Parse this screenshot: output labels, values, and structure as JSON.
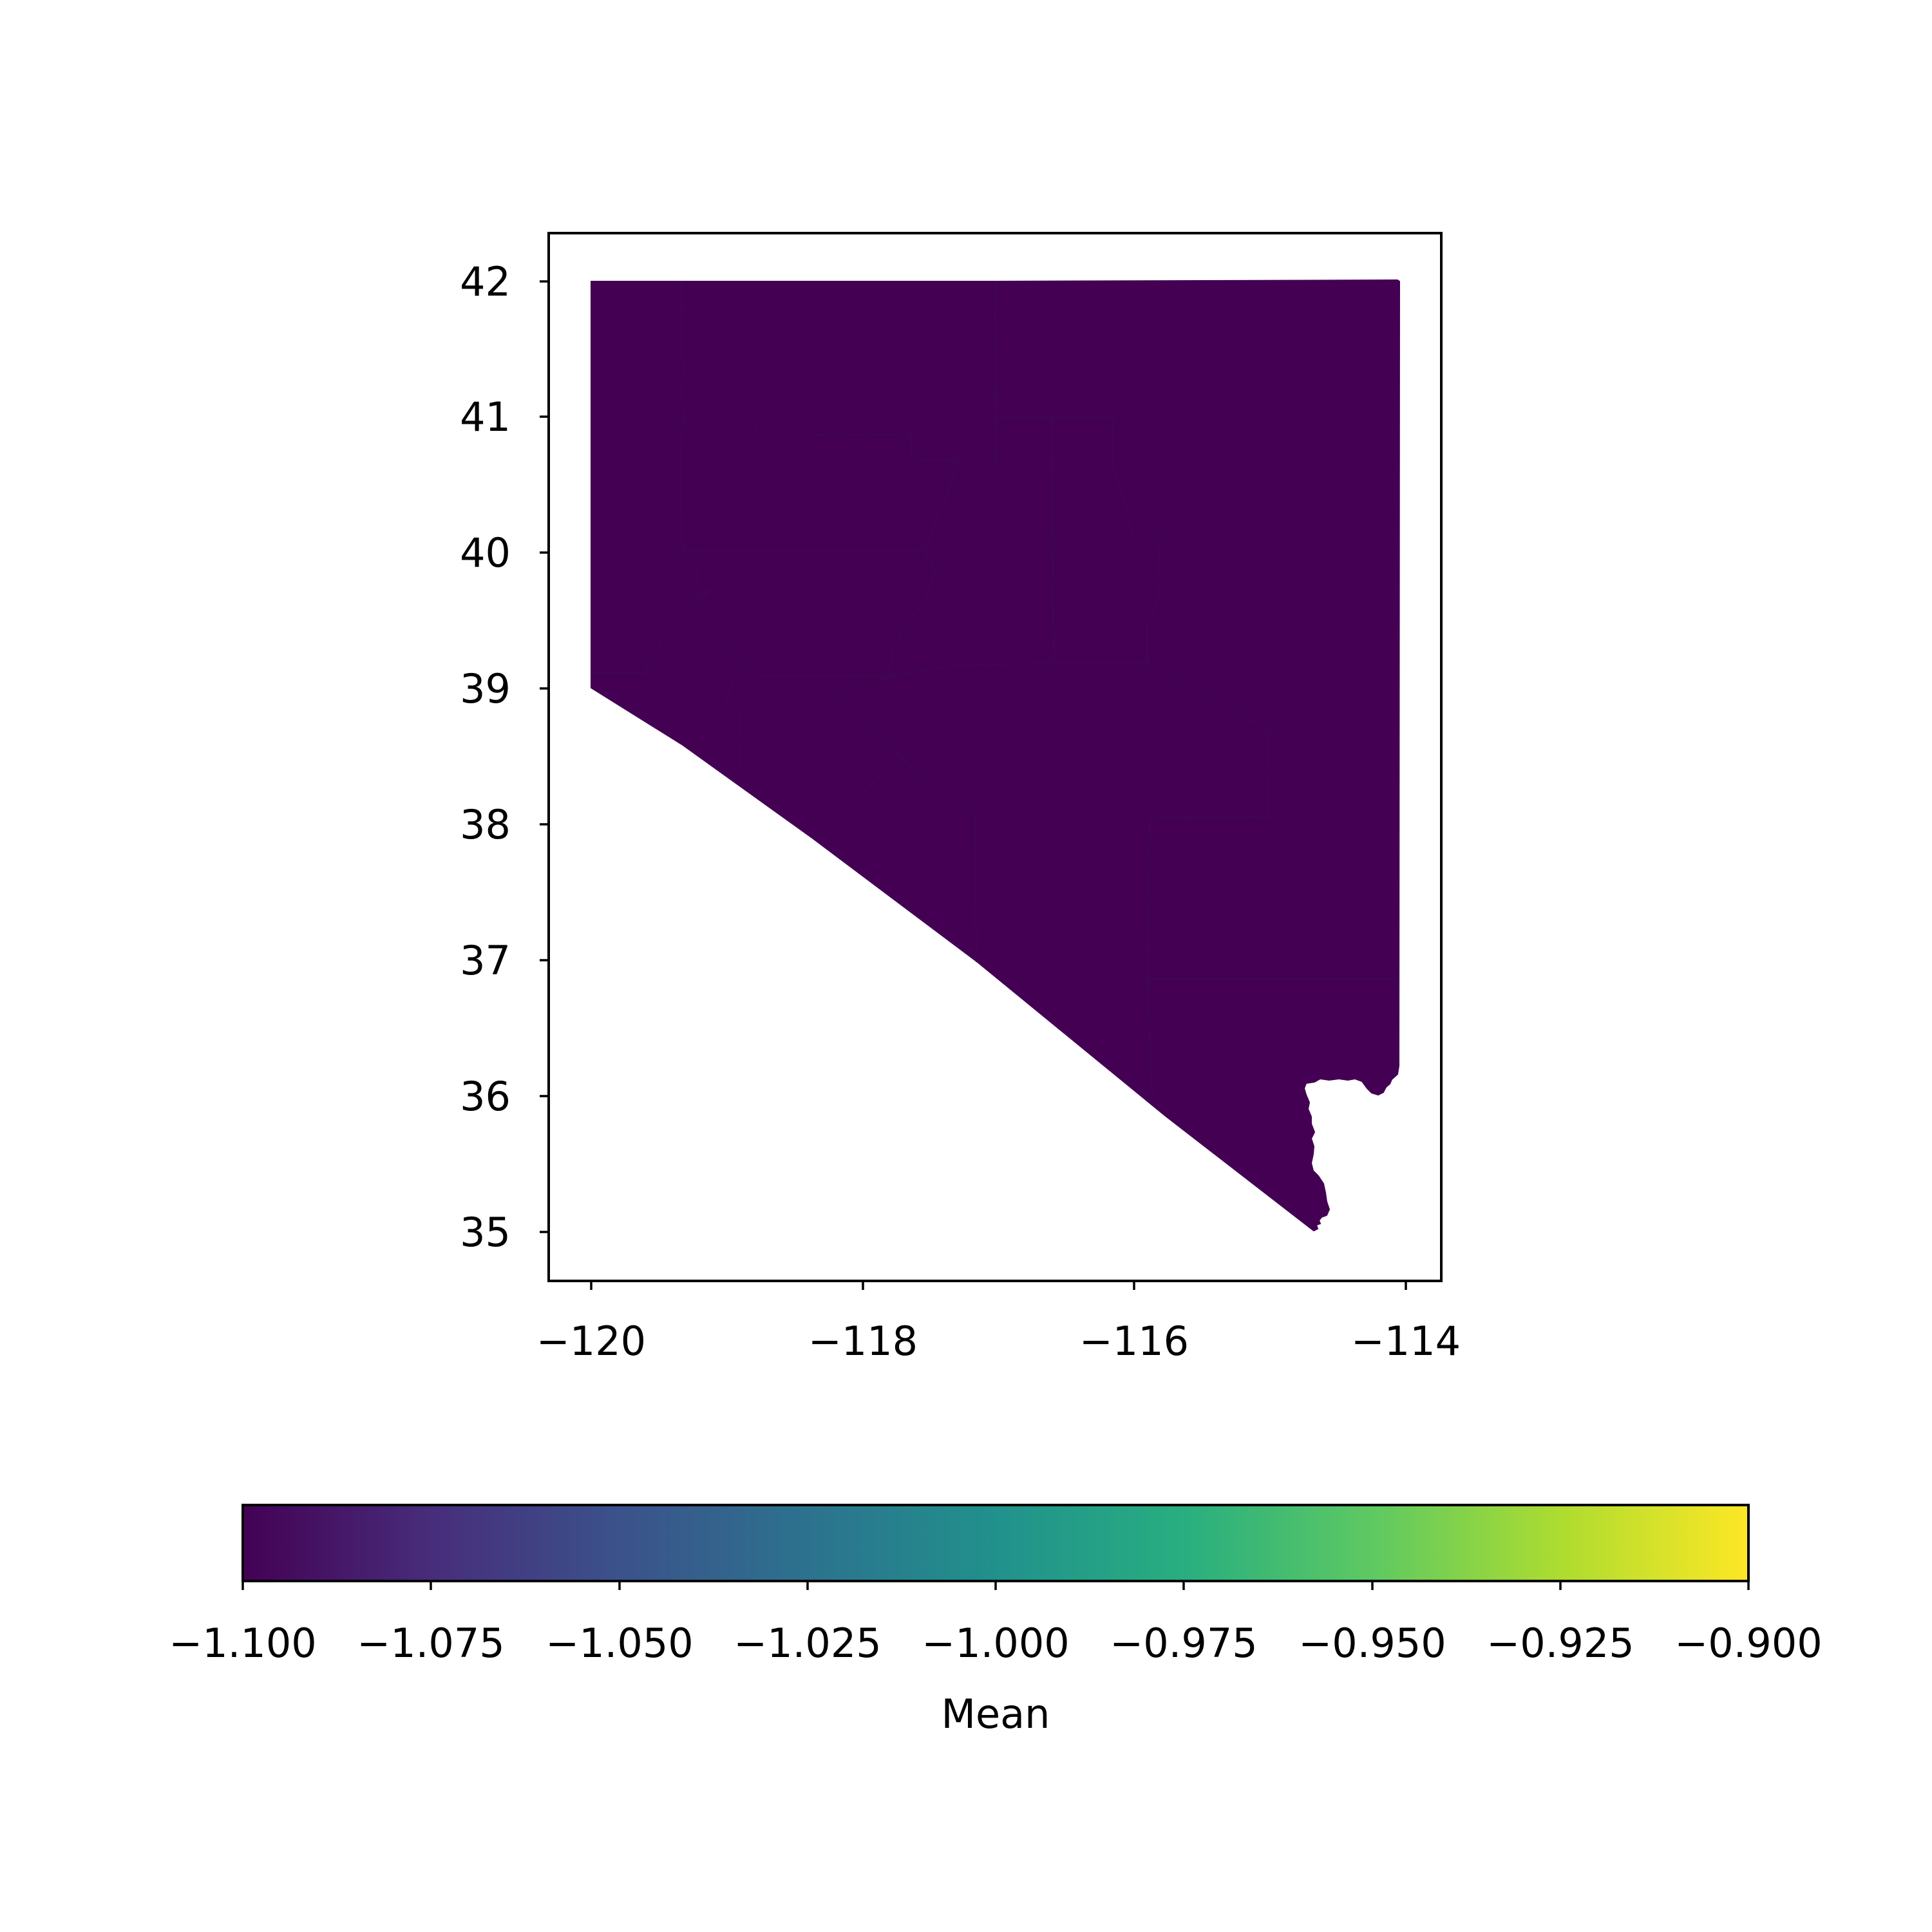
{
  "chart_data": {
    "type": "heatmap",
    "subtype": "choropleth",
    "region_value": -1.1,
    "x_ticks": [
      "−120",
      "−118",
      "−116",
      "−114"
    ],
    "x_tick_values": [
      -120,
      -118,
      -116,
      -114
    ],
    "y_ticks": [
      "35",
      "36",
      "37",
      "38",
      "39",
      "40",
      "41",
      "42"
    ],
    "y_tick_values": [
      35,
      36,
      37,
      38,
      39,
      40,
      41,
      42
    ],
    "colorbar": {
      "label": "Mean",
      "colormap": "viridis",
      "range": [
        -1.1,
        -0.9
      ],
      "tick_labels": [
        "−1.100",
        "−1.075",
        "−1.050",
        "−1.025",
        "−1.000",
        "−0.975",
        "−0.950",
        "−0.925",
        "−0.900"
      ],
      "orientation": "horizontal",
      "placement": "bottom"
    },
    "fill_color": "#440154"
  }
}
